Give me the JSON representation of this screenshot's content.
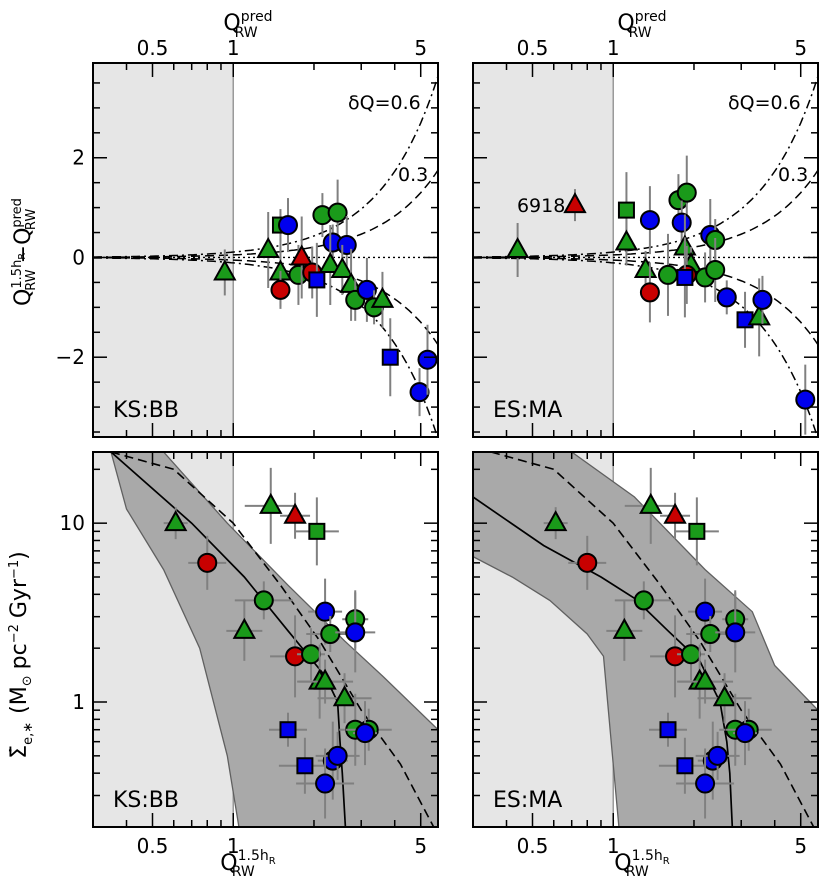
{
  "figure": {
    "top_axis_label": "Q",
    "top_axis_label_sup": "pred",
    "top_axis_label_sub": "RW",
    "bottom_axis_label": "Q",
    "bottom_axis_label_sup": "1.5h",
    "bottom_axis_label_sup_sub": "R",
    "bottom_axis_label_sub": "RW",
    "upper_ylabel": "Q^{1.5h_R}_{RW} − Q^{pred}_{RW}",
    "lower_ylabel": "Σ̇_{e,*}  (M_⊙ pc^{-2} Gyr^{-1})",
    "x_ticks": [
      "0.5",
      "1",
      "5"
    ],
    "upper_y_ticks": [
      "2",
      "0",
      "−2"
    ],
    "lower_y_ticks": [
      "10",
      "1"
    ],
    "envelope_labels": [
      "δQ=0.6",
      "0.3"
    ],
    "panel_labels": {
      "left_top": "KS:BB",
      "right_top": "ES:MA",
      "left_bottom": "KS:BB",
      "right_bottom": "ES:MA"
    },
    "annotation": "6918"
  },
  "colors": {
    "red": "#c80000",
    "green": "#1a9a1a",
    "blue": "#0000ee",
    "shade_light": "#e6e6e6",
    "shade_band": "#a9a9a9",
    "errorbar": "#808080"
  },
  "chart_data": [
    {
      "type": "scatter",
      "panel": "top-left",
      "label": "KS:BB",
      "xscale": "log",
      "xlim": [
        0.3,
        5.8
      ],
      "ylim": [
        -3.6,
        3.9
      ],
      "x_label": "Q_RW^pred",
      "y_label": "Q_RW^1.5hR − Q_RW^pred",
      "shaded_region": {
        "x_max": 1
      },
      "envelopes": [
        {
          "label": "δQ=0.6"
        },
        {
          "label": "0.3"
        }
      ],
      "points": [
        {
          "x": 1.5,
          "y": 0.65,
          "marker": "square",
          "color": "green"
        },
        {
          "x": 1.6,
          "y": 0.65,
          "marker": "circle",
          "color": "blue"
        },
        {
          "x": 1.35,
          "y": 0.15,
          "marker": "triangle",
          "color": "green"
        },
        {
          "x": 0.93,
          "y": -0.3,
          "marker": "triangle",
          "color": "green"
        },
        {
          "x": 1.5,
          "y": -0.3,
          "marker": "triangle",
          "color": "green"
        },
        {
          "x": 1.5,
          "y": -0.65,
          "marker": "circle",
          "color": "red"
        },
        {
          "x": 1.75,
          "y": -0.35,
          "marker": "circle",
          "color": "green"
        },
        {
          "x": 1.8,
          "y": 0.0,
          "marker": "triangle",
          "color": "red"
        },
        {
          "x": 1.97,
          "y": -0.3,
          "marker": "circle",
          "color": "red"
        },
        {
          "x": 2.05,
          "y": -0.45,
          "marker": "square",
          "color": "blue"
        },
        {
          "x": 2.15,
          "y": 0.85,
          "marker": "circle",
          "color": "green"
        },
        {
          "x": 2.45,
          "y": 0.9,
          "marker": "circle",
          "color": "green"
        },
        {
          "x": 2.35,
          "y": 0.3,
          "marker": "circle",
          "color": "blue"
        },
        {
          "x": 2.65,
          "y": 0.25,
          "marker": "circle",
          "color": "blue"
        },
        {
          "x": 2.3,
          "y": -0.15,
          "marker": "triangle",
          "color": "green"
        },
        {
          "x": 2.55,
          "y": -0.25,
          "marker": "triangle",
          "color": "green"
        },
        {
          "x": 2.75,
          "y": -0.55,
          "marker": "triangle",
          "color": "green"
        },
        {
          "x": 2.85,
          "y": -0.85,
          "marker": "circle",
          "color": "green"
        },
        {
          "x": 3.15,
          "y": -0.65,
          "marker": "circle",
          "color": "blue"
        },
        {
          "x": 3.35,
          "y": -1.0,
          "marker": "circle",
          "color": "green"
        },
        {
          "x": 3.6,
          "y": -0.85,
          "marker": "triangle",
          "color": "green"
        },
        {
          "x": 3.85,
          "y": -2.0,
          "marker": "square",
          "color": "blue"
        },
        {
          "x": 4.95,
          "y": -2.7,
          "marker": "circle",
          "color": "blue"
        },
        {
          "x": 5.3,
          "y": -2.05,
          "marker": "circle",
          "color": "blue"
        }
      ]
    },
    {
      "type": "scatter",
      "panel": "top-right",
      "label": "ES:MA",
      "xscale": "log",
      "xlim": [
        0.3,
        5.8
      ],
      "ylim": [
        -3.6,
        3.9
      ],
      "x_label": "Q_RW^pred",
      "y_label": "Q_RW^1.5hR − Q_RW^pred",
      "shaded_region": {
        "x_max": 1
      },
      "envelopes": [
        {
          "label": "δQ=0.6"
        },
        {
          "label": "0.3"
        }
      ],
      "points": [
        {
          "x": 0.72,
          "y": 1.05,
          "marker": "triangle",
          "color": "red",
          "label": "6918"
        },
        {
          "x": 0.44,
          "y": 0.15,
          "marker": "triangle",
          "color": "green"
        },
        {
          "x": 1.12,
          "y": 0.95,
          "marker": "square",
          "color": "green"
        },
        {
          "x": 1.12,
          "y": 0.3,
          "marker": "triangle",
          "color": "green"
        },
        {
          "x": 1.37,
          "y": 0.75,
          "marker": "circle",
          "color": "blue"
        },
        {
          "x": 1.32,
          "y": -0.25,
          "marker": "triangle",
          "color": "green"
        },
        {
          "x": 1.37,
          "y": -0.7,
          "marker": "circle",
          "color": "red"
        },
        {
          "x": 1.6,
          "y": -0.35,
          "marker": "circle",
          "color": "green"
        },
        {
          "x": 1.75,
          "y": 1.15,
          "marker": "circle",
          "color": "green"
        },
        {
          "x": 1.88,
          "y": 1.3,
          "marker": "circle",
          "color": "green"
        },
        {
          "x": 1.8,
          "y": 0.7,
          "marker": "circle",
          "color": "blue"
        },
        {
          "x": 1.85,
          "y": 0.2,
          "marker": "triangle",
          "color": "green"
        },
        {
          "x": 1.95,
          "y": -0.15,
          "marker": "triangle",
          "color": "green"
        },
        {
          "x": 1.88,
          "y": -0.35,
          "marker": "circle",
          "color": "red"
        },
        {
          "x": 1.85,
          "y": -0.4,
          "marker": "square",
          "color": "blue"
        },
        {
          "x": 2.2,
          "y": -0.4,
          "marker": "circle",
          "color": "green"
        },
        {
          "x": 2.3,
          "y": 0.45,
          "marker": "circle",
          "color": "blue"
        },
        {
          "x": 2.4,
          "y": 0.35,
          "marker": "circle",
          "color": "green"
        },
        {
          "x": 2.4,
          "y": -0.25,
          "marker": "circle",
          "color": "green"
        },
        {
          "x": 2.65,
          "y": -0.8,
          "marker": "circle",
          "color": "blue"
        },
        {
          "x": 3.1,
          "y": -1.25,
          "marker": "square",
          "color": "blue"
        },
        {
          "x": 3.5,
          "y": -1.2,
          "marker": "triangle",
          "color": "green"
        },
        {
          "x": 3.6,
          "y": -0.85,
          "marker": "circle",
          "color": "blue"
        },
        {
          "x": 5.2,
          "y": -2.85,
          "marker": "circle",
          "color": "blue"
        }
      ]
    },
    {
      "type": "scatter",
      "panel": "bottom-left",
      "label": "KS:BB",
      "xscale": "log",
      "yscale": "log",
      "xlim": [
        0.3,
        5.8
      ],
      "ylim": [
        0.2,
        25
      ],
      "x_label": "Q_RW^1.5hR",
      "y_label": "Σ̇_e,* (M_⊙ pc^-2 Gyr^-1)",
      "shaded_region": {
        "x_max": 1
      },
      "lines": [
        {
          "style": "solid"
        },
        {
          "style": "dashed"
        }
      ],
      "points": [
        {
          "x": 0.61,
          "y": 10.0,
          "marker": "triangle",
          "color": "green"
        },
        {
          "x": 0.8,
          "y": 6.0,
          "marker": "circle",
          "color": "red"
        },
        {
          "x": 1.38,
          "y": 12.5,
          "marker": "triangle",
          "color": "green"
        },
        {
          "x": 1.7,
          "y": 11.0,
          "marker": "triangle",
          "color": "red"
        },
        {
          "x": 2.05,
          "y": 9.0,
          "marker": "square",
          "color": "green"
        },
        {
          "x": 1.3,
          "y": 3.7,
          "marker": "circle",
          "color": "green"
        },
        {
          "x": 1.1,
          "y": 2.5,
          "marker": "triangle",
          "color": "green"
        },
        {
          "x": 1.7,
          "y": 1.8,
          "marker": "circle",
          "color": "red"
        },
        {
          "x": 1.95,
          "y": 1.85,
          "marker": "circle",
          "color": "green"
        },
        {
          "x": 2.1,
          "y": 1.3,
          "marker": "triangle",
          "color": "green"
        },
        {
          "x": 2.2,
          "y": 1.3,
          "marker": "triangle",
          "color": "green"
        },
        {
          "x": 2.2,
          "y": 3.2,
          "marker": "circle",
          "color": "blue"
        },
        {
          "x": 2.3,
          "y": 2.4,
          "marker": "circle",
          "color": "green"
        },
        {
          "x": 2.85,
          "y": 2.9,
          "marker": "circle",
          "color": "green"
        },
        {
          "x": 2.85,
          "y": 2.45,
          "marker": "circle",
          "color": "blue"
        },
        {
          "x": 2.6,
          "y": 1.05,
          "marker": "triangle",
          "color": "green"
        },
        {
          "x": 2.85,
          "y": 0.7,
          "marker": "circle",
          "color": "green"
        },
        {
          "x": 3.2,
          "y": 0.7,
          "marker": "circle",
          "color": "green"
        },
        {
          "x": 3.1,
          "y": 0.67,
          "marker": "circle",
          "color": "blue"
        },
        {
          "x": 1.6,
          "y": 0.7,
          "marker": "square",
          "color": "blue"
        },
        {
          "x": 1.85,
          "y": 0.44,
          "marker": "square",
          "color": "blue"
        },
        {
          "x": 2.35,
          "y": 0.47,
          "marker": "circle",
          "color": "blue"
        },
        {
          "x": 2.45,
          "y": 0.5,
          "marker": "circle",
          "color": "blue"
        },
        {
          "x": 2.2,
          "y": 0.35,
          "marker": "circle",
          "color": "blue"
        }
      ]
    },
    {
      "type": "scatter",
      "panel": "bottom-right",
      "label": "ES:MA",
      "xscale": "log",
      "yscale": "log",
      "xlim": [
        0.3,
        5.8
      ],
      "ylim": [
        0.2,
        25
      ],
      "x_label": "Q_RW^1.5hR",
      "y_label": "Σ̇_e,* (M_⊙ pc^-2 Gyr^-1)",
      "shaded_region": {
        "x_max": 1
      },
      "lines": [
        {
          "style": "solid"
        },
        {
          "style": "dashed"
        }
      ],
      "points": [
        {
          "x": 0.61,
          "y": 10.0,
          "marker": "triangle",
          "color": "green"
        },
        {
          "x": 0.8,
          "y": 6.0,
          "marker": "circle",
          "color": "red"
        },
        {
          "x": 1.38,
          "y": 12.5,
          "marker": "triangle",
          "color": "green"
        },
        {
          "x": 1.7,
          "y": 11.0,
          "marker": "triangle",
          "color": "red"
        },
        {
          "x": 2.05,
          "y": 9.0,
          "marker": "square",
          "color": "green"
        },
        {
          "x": 1.3,
          "y": 3.7,
          "marker": "circle",
          "color": "green"
        },
        {
          "x": 1.1,
          "y": 2.5,
          "marker": "triangle",
          "color": "green"
        },
        {
          "x": 1.7,
          "y": 1.8,
          "marker": "circle",
          "color": "red"
        },
        {
          "x": 1.95,
          "y": 1.85,
          "marker": "circle",
          "color": "green"
        },
        {
          "x": 2.1,
          "y": 1.3,
          "marker": "triangle",
          "color": "green"
        },
        {
          "x": 2.2,
          "y": 1.3,
          "marker": "triangle",
          "color": "green"
        },
        {
          "x": 2.2,
          "y": 3.2,
          "marker": "circle",
          "color": "blue"
        },
        {
          "x": 2.3,
          "y": 2.4,
          "marker": "circle",
          "color": "green"
        },
        {
          "x": 2.85,
          "y": 2.9,
          "marker": "circle",
          "color": "green"
        },
        {
          "x": 2.85,
          "y": 2.45,
          "marker": "circle",
          "color": "blue"
        },
        {
          "x": 2.6,
          "y": 1.05,
          "marker": "triangle",
          "color": "green"
        },
        {
          "x": 2.85,
          "y": 0.7,
          "marker": "circle",
          "color": "green"
        },
        {
          "x": 3.2,
          "y": 0.7,
          "marker": "circle",
          "color": "green"
        },
        {
          "x": 3.1,
          "y": 0.67,
          "marker": "circle",
          "color": "blue"
        },
        {
          "x": 1.6,
          "y": 0.7,
          "marker": "square",
          "color": "blue"
        },
        {
          "x": 1.85,
          "y": 0.44,
          "marker": "square",
          "color": "blue"
        },
        {
          "x": 2.35,
          "y": 0.47,
          "marker": "circle",
          "color": "blue"
        },
        {
          "x": 2.45,
          "y": 0.5,
          "marker": "circle",
          "color": "blue"
        },
        {
          "x": 2.2,
          "y": 0.35,
          "marker": "circle",
          "color": "blue"
        }
      ]
    }
  ]
}
